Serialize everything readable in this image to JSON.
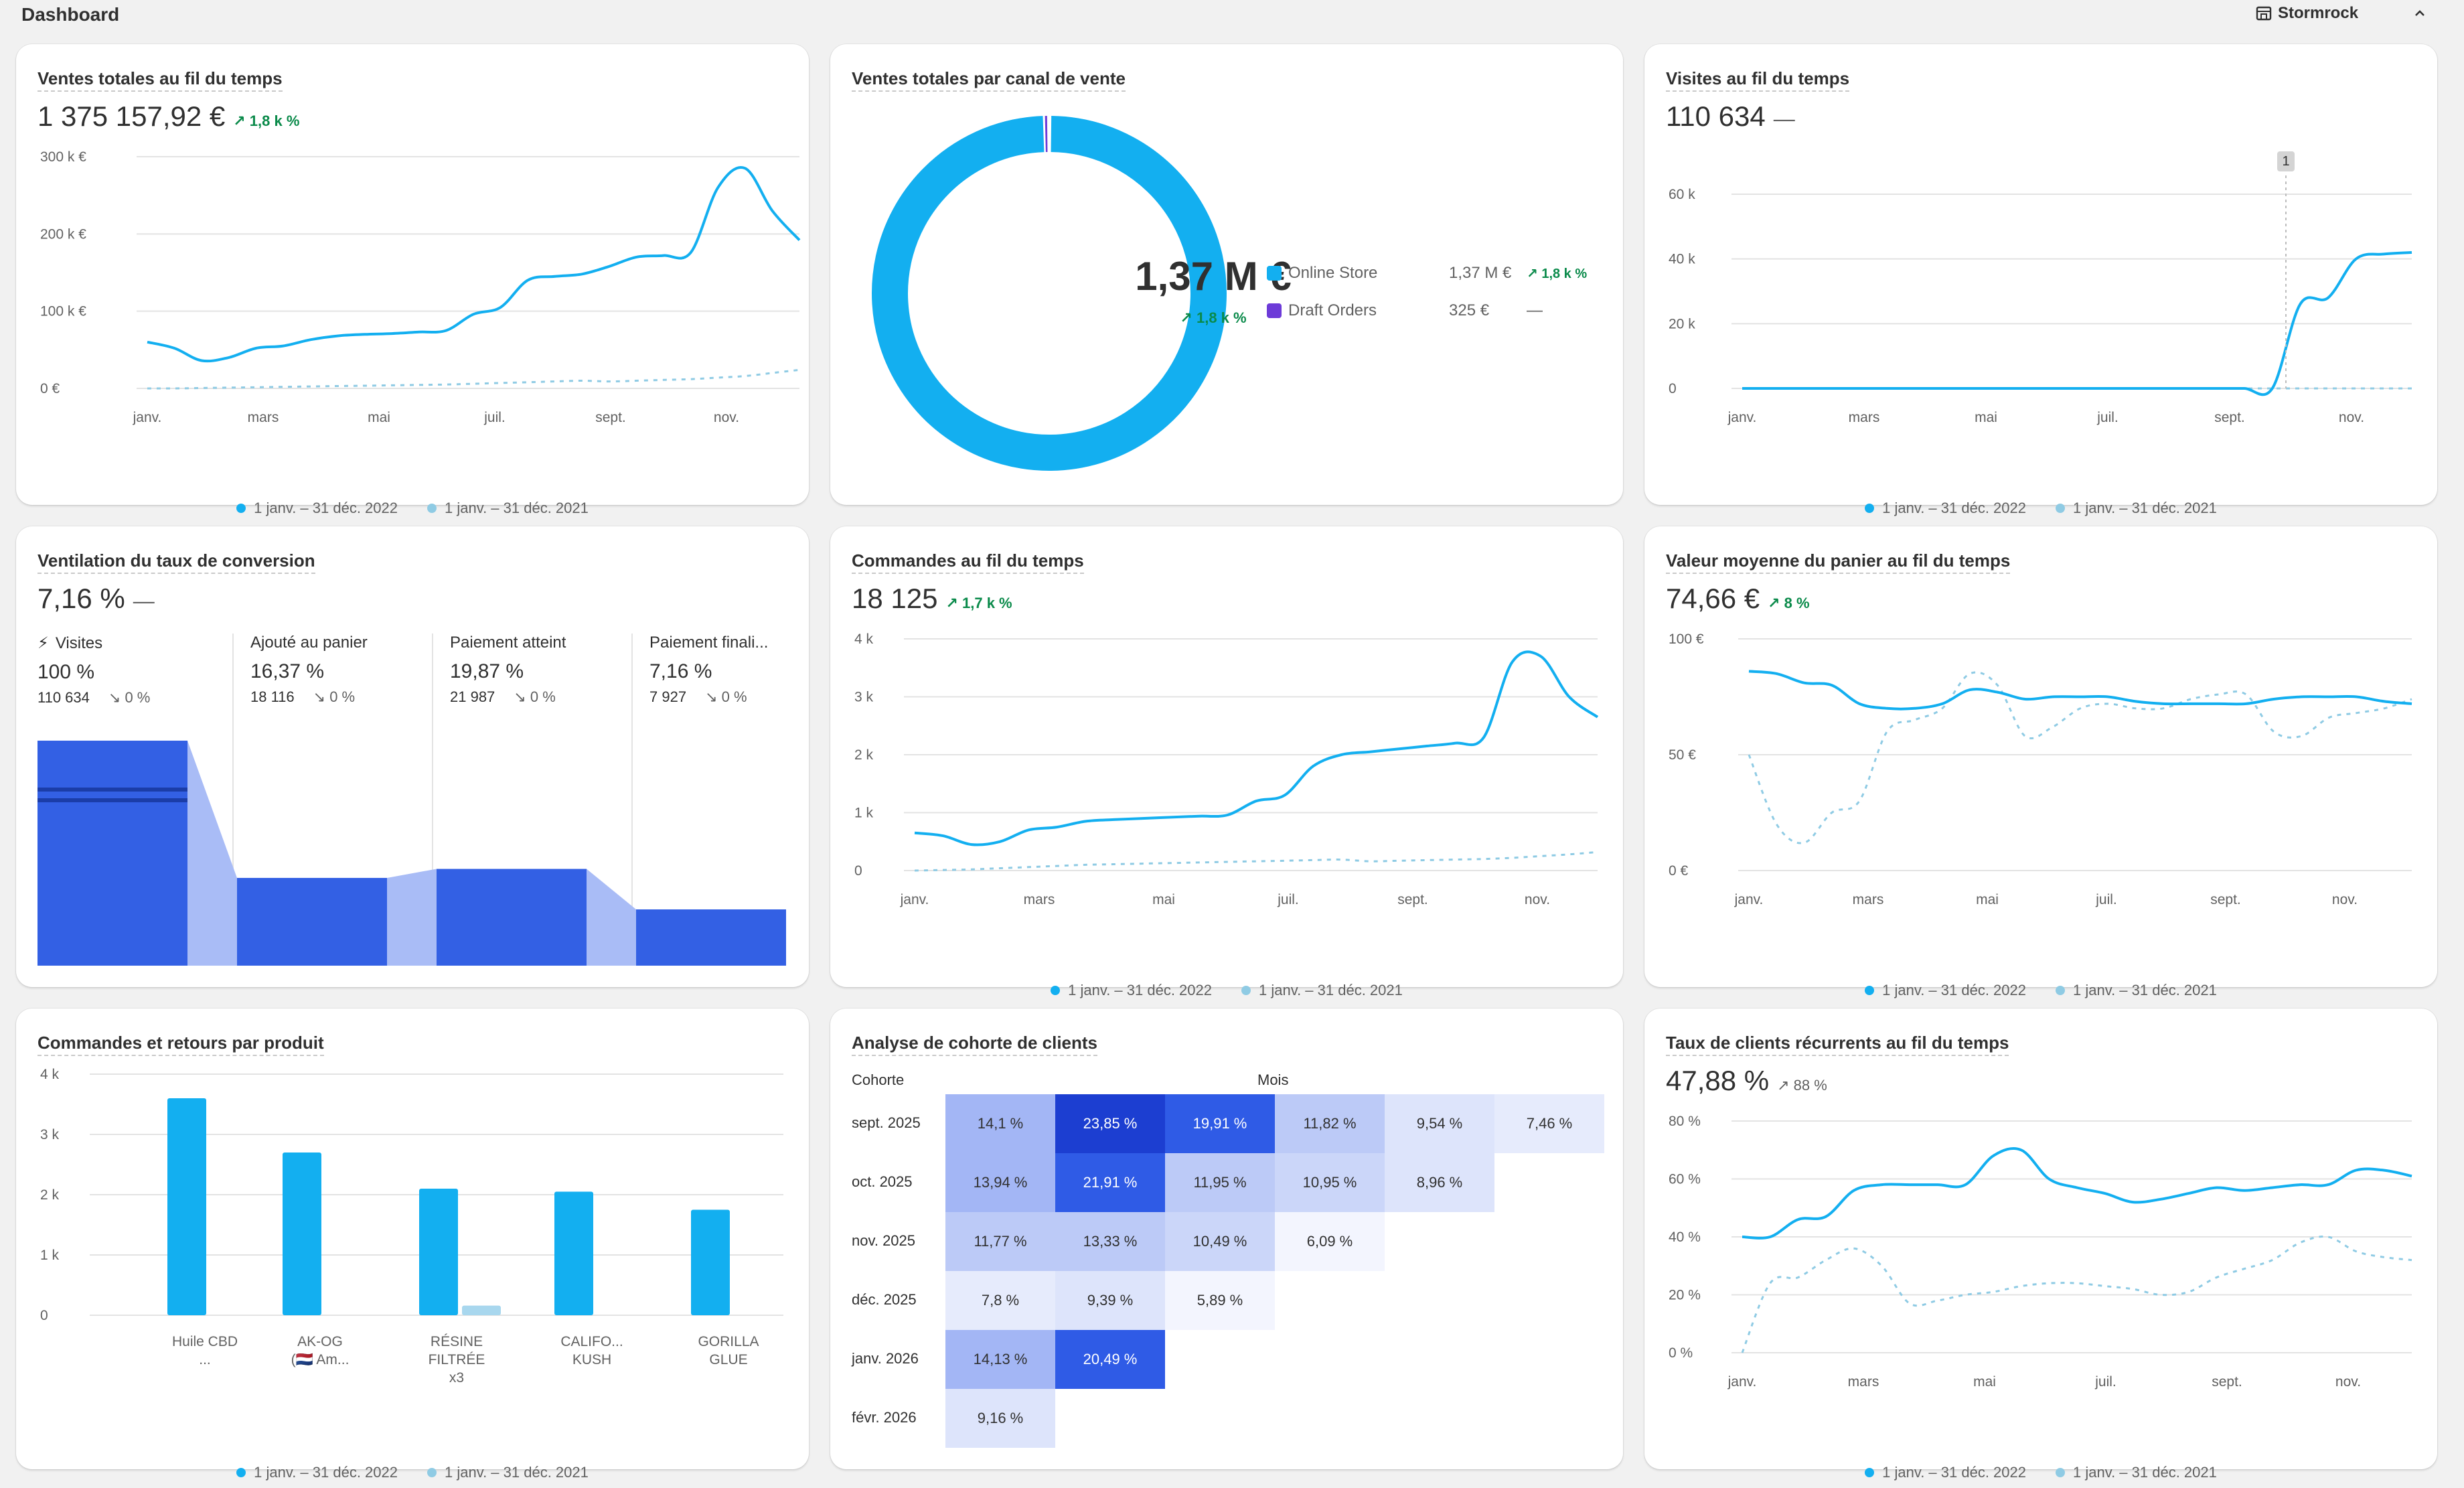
{
  "header": {
    "title": "Dashboard",
    "store_name": "Stormrock",
    "collapse_icon": "chevron-up-icon",
    "store_icon": "store-icon"
  },
  "colors": {
    "primary": "#13aff0",
    "comparison": "#8fcbe4",
    "funnel": "#3360e4",
    "funnel_light": "#a9bcf6",
    "positive": "#0a8a4a",
    "draft": "#6d3bd8"
  },
  "legend": {
    "current": "1 janv. – 31 déc. 2022",
    "previous": "1 janv. – 31 déc. 2021"
  },
  "months_a": [
    "janv.",
    "mars",
    "mai",
    "juil.",
    "sept.",
    "nov."
  ],
  "sales": {
    "title": "Ventes totales au fil du temps",
    "value": "1 375 157,92 €",
    "delta": "↗ 1,8 k %",
    "chart_data": {
      "type": "line",
      "ylim": [
        0,
        300000
      ],
      "y_ticks": [
        "300 k €",
        "200 k €",
        "100 k €",
        "0 €"
      ],
      "x_ticks": [
        "janv.",
        "mars",
        "mai",
        "juil.",
        "sept.",
        "nov."
      ],
      "series": [
        {
          "name": "1 janv. – 31 déc. 2022",
          "values": [
            60000,
            52000,
            36000,
            40000,
            52000,
            55000,
            63000,
            68000,
            70000,
            71000,
            73000,
            75000,
            96000,
            105000,
            140000,
            145000,
            148000,
            158000,
            170000,
            172000,
            176000,
            260000,
            285000,
            230000,
            192000
          ]
        },
        {
          "name": "1 janv. – 31 déc. 2021",
          "values": [
            0,
            0,
            500,
            1000,
            1500,
            2000,
            2500,
            3000,
            3500,
            4000,
            4500,
            5000,
            6000,
            7000,
            8000,
            9000,
            10000,
            9000,
            10000,
            11000,
            12000,
            14000,
            16000,
            20000,
            24000
          ]
        }
      ]
    }
  },
  "channels": {
    "title": "Ventes totales par canal de vente",
    "center_value": "1,37 M €",
    "center_delta": "↗ 1,8 k %",
    "chart_data": {
      "type": "pie",
      "categories": [
        "Online Store",
        "Draft Orders"
      ],
      "values": [
        1370000,
        325
      ]
    },
    "rows": [
      {
        "name": "Online Store",
        "value": "1,37 M €",
        "delta": "↗ 1,8 k %"
      },
      {
        "name": "Draft Orders",
        "value": "325 €",
        "delta": "—"
      }
    ]
  },
  "visits": {
    "title": "Visites au fil du temps",
    "value": "110 634",
    "dash": "—",
    "marker": "1",
    "chart_data": {
      "type": "line",
      "ylim": [
        0,
        60000
      ],
      "y_ticks": [
        "60 k",
        "40 k",
        "20 k",
        "0"
      ],
      "x_ticks": [
        "janv.",
        "mars",
        "mai",
        "juil.",
        "sept.",
        "nov."
      ],
      "series": [
        {
          "name": "1 janv. – 31 déc. 2022",
          "values": [
            0,
            0,
            0,
            0,
            0,
            0,
            0,
            0,
            0,
            0,
            0,
            0,
            0,
            0,
            0,
            0,
            0,
            0,
            0,
            0,
            26000,
            28000,
            40000,
            41500,
            42000
          ]
        },
        {
          "name": "1 janv. – 31 déc. 2021",
          "values": [
            0,
            0,
            0,
            0,
            0,
            0,
            0,
            0,
            0,
            0,
            0,
            0,
            0,
            0,
            0,
            0,
            0,
            0,
            0,
            0,
            0,
            0,
            0,
            0,
            0
          ]
        }
      ]
    }
  },
  "conversion": {
    "title": "Ventilation du taux de conversion",
    "value": "7,16 %",
    "dash": "—",
    "steps": [
      {
        "label": "Visites",
        "pct": "100 %",
        "count": "110 634",
        "delta": "↘ 0 %",
        "ratio": 1.0
      },
      {
        "label": "Ajouté au panier",
        "pct": "16,37 %",
        "count": "18 116",
        "delta": "↘ 0 %",
        "ratio": 0.1637
      },
      {
        "label": "Paiement atteint",
        "pct": "19,87 %",
        "count": "21 987",
        "delta": "↘ 0 %",
        "ratio": 0.1987
      },
      {
        "label": "Paiement finali...",
        "pct": "7,16 %",
        "count": "7 927",
        "delta": "↘ 0 %",
        "ratio": 0.0716
      }
    ]
  },
  "orders": {
    "title": "Commandes au fil du temps",
    "value": "18 125",
    "delta": "↗ 1,7 k %",
    "chart_data": {
      "type": "line",
      "ylim": [
        0,
        4000
      ],
      "y_ticks": [
        "4 k",
        "3 k",
        "2 k",
        "1 k",
        "0"
      ],
      "x_ticks": [
        "janv.",
        "mars",
        "mai",
        "juil.",
        "sept.",
        "nov."
      ],
      "series": [
        {
          "name": "1 janv. – 31 déc. 2022",
          "values": [
            650,
            600,
            450,
            500,
            700,
            750,
            850,
            880,
            900,
            920,
            940,
            960,
            1200,
            1300,
            1800,
            2000,
            2050,
            2100,
            2150,
            2200,
            2300,
            3600,
            3700,
            3000,
            2650
          ]
        },
        {
          "name": "1 janv. – 31 déc. 2021",
          "values": [
            0,
            10,
            20,
            40,
            60,
            80,
            100,
            110,
            120,
            130,
            140,
            150,
            160,
            170,
            180,
            190,
            160,
            170,
            180,
            190,
            200,
            220,
            250,
            280,
            320
          ]
        }
      ]
    }
  },
  "aov": {
    "title": "Valeur moyenne du panier au fil du temps",
    "value": "74,66 €",
    "delta": "↗ 8 %",
    "chart_data": {
      "type": "line",
      "ylim": [
        0,
        100
      ],
      "y_ticks": [
        "100 €",
        "50 €",
        "0 €"
      ],
      "x_ticks": [
        "janv.",
        "mars",
        "mai",
        "juil.",
        "sept.",
        "nov."
      ],
      "series": [
        {
          "name": "1 janv. – 31 déc. 2022",
          "values": [
            86,
            85,
            81,
            80,
            72,
            70,
            70,
            72,
            78,
            77,
            74,
            75,
            75,
            75,
            73,
            72,
            72,
            72,
            72,
            74,
            75,
            75,
            75,
            73,
            72
          ]
        },
        {
          "name": "1 janv. – 31 déc. 2021",
          "values": [
            50,
            20,
            12,
            25,
            30,
            60,
            65,
            70,
            85,
            80,
            58,
            62,
            70,
            72,
            70,
            70,
            74,
            76,
            76,
            60,
            58,
            66,
            68,
            70,
            74
          ]
        }
      ]
    }
  },
  "products": {
    "title": "Commandes et retours par produit",
    "chart_data": {
      "type": "bar",
      "ylim": [
        0,
        4000
      ],
      "y_ticks": [
        "4 k",
        "3 k",
        "2 k",
        "1 k",
        "0"
      ],
      "categories": [
        "Huile CBD\n...",
        "AK-OG\n(🇳🇱 Am...",
        "RÉSINE\nFILTRÉE\nx3",
        "CALIFO...\nKUSH",
        "GORILLA\nGLUE"
      ],
      "series": [
        {
          "name": "1 janv. – 31 déc. 2022",
          "values": [
            3600,
            2700,
            2100,
            2050,
            1750
          ]
        },
        {
          "name": "1 janv. – 31 déc. 2021",
          "values": [
            0,
            0,
            160,
            0,
            0
          ]
        }
      ]
    }
  },
  "cohort": {
    "title": "Analyse de cohorte de clients",
    "col_header_left": "Cohorte",
    "col_header_right": "Mois",
    "chart_data": {
      "type": "heatmap",
      "rows": [
        "sept. 2025",
        "oct. 2025",
        "nov. 2025",
        "déc. 2025",
        "janv. 2026",
        "févr. 2026"
      ],
      "values": [
        [
          "14,1 %",
          "23,85 %",
          "19,91 %",
          "11,82 %",
          "9,54 %",
          "7,46 %"
        ],
        [
          "13,94 %",
          "21,91 %",
          "11,95 %",
          "10,95 %",
          "8,96 %"
        ],
        [
          "11,77 %",
          "13,33 %",
          "10,49 %",
          "6,09 %"
        ],
        [
          "7,8 %",
          "9,39 %",
          "5,89 %"
        ],
        [
          "14,13 %",
          "20,49 %"
        ],
        [
          "9,16 %"
        ]
      ],
      "numeric": [
        [
          14.1,
          23.85,
          19.91,
          11.82,
          9.54,
          7.46
        ],
        [
          13.94,
          21.91,
          11.95,
          10.95,
          8.96
        ],
        [
          11.77,
          13.33,
          10.49,
          6.09
        ],
        [
          7.8,
          9.39,
          5.89
        ],
        [
          14.13,
          20.49
        ],
        [
          9.16
        ]
      ]
    }
  },
  "returning": {
    "title": "Taux de clients récurrents au fil du temps",
    "value": "47,88 %",
    "delta": "↗ 88 %",
    "chart_data": {
      "type": "line",
      "ylim": [
        0,
        80
      ],
      "y_ticks": [
        "80 %",
        "60 %",
        "40 %",
        "20 %",
        "0 %"
      ],
      "x_ticks": [
        "janv.",
        "mars",
        "mai",
        "juil.",
        "sept.",
        "nov."
      ],
      "series": [
        {
          "name": "1 janv. – 31 déc. 2022",
          "values": [
            40,
            40,
            46,
            47,
            56,
            58,
            58,
            58,
            58,
            68,
            70,
            60,
            57,
            55,
            52,
            53,
            55,
            57,
            56,
            57,
            58,
            58,
            63,
            63,
            61
          ]
        },
        {
          "name": "1 janv. – 31 déc. 2021",
          "values": [
            0,
            24,
            26,
            32,
            36,
            30,
            17,
            18,
            20,
            21,
            23,
            24,
            24,
            23,
            22,
            20,
            21,
            26,
            29,
            32,
            38,
            40,
            35,
            33,
            32
          ]
        }
      ]
    }
  }
}
